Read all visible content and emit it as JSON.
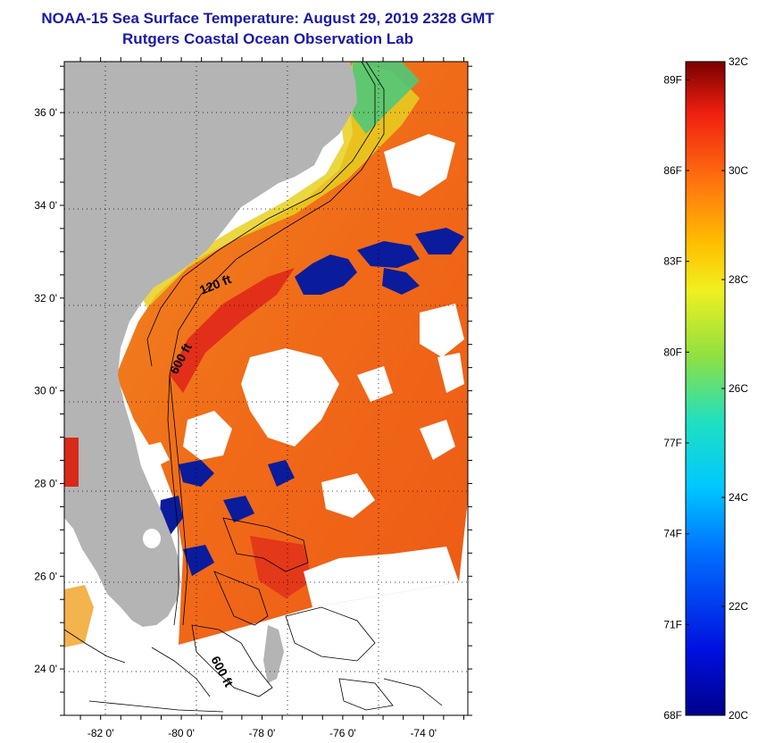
{
  "header": {
    "title": "NOAA-15 Sea Surface Temperature:  August 29, 2019 2328 GMT",
    "subtitle": "Rutgers Coastal Ocean Observation Lab"
  },
  "map": {
    "lat_range": [
      23,
      37.1
    ],
    "lon_range": [
      -82.9,
      -72.9
    ],
    "lat_labels": [
      {
        "lat": 36,
        "label": "36 0'"
      },
      {
        "lat": 34,
        "label": "34 0'"
      },
      {
        "lat": 32,
        "label": "32 0'"
      },
      {
        "lat": 30,
        "label": "30 0'"
      },
      {
        "lat": 28,
        "label": "28 0'"
      },
      {
        "lat": 26,
        "label": "26 0'"
      },
      {
        "lat": 24,
        "label": "24 0'"
      }
    ],
    "lon_labels": [
      {
        "lon": -82,
        "label": "-82 0'"
      },
      {
        "lon": -80,
        "label": "-80 0'"
      },
      {
        "lon": -78,
        "label": "-78 0'"
      },
      {
        "lon": -76,
        "label": "-76 0'"
      },
      {
        "lon": -74,
        "label": "-74 0'"
      }
    ],
    "contour_labels": {
      "c120": "120 ft",
      "c600a": "600 ft",
      "c600b": "600 ft"
    }
  },
  "colorbar": {
    "celsius": [
      {
        "value": 32,
        "label": "32C"
      },
      {
        "value": 30,
        "label": "30C"
      },
      {
        "value": 28,
        "label": "28C"
      },
      {
        "value": 26,
        "label": "26C"
      },
      {
        "value": 24,
        "label": "24C"
      },
      {
        "value": 22,
        "label": "22C"
      },
      {
        "value": 20,
        "label": "20C"
      }
    ],
    "fahrenheit": [
      {
        "value": 89,
        "label": "89F"
      },
      {
        "value": 86,
        "label": "86F"
      },
      {
        "value": 83,
        "label": "83F"
      },
      {
        "value": 80,
        "label": "80F"
      },
      {
        "value": 77,
        "label": "77F"
      },
      {
        "value": 74,
        "label": "74F"
      },
      {
        "value": 71,
        "label": "71F"
      },
      {
        "value": 68,
        "label": "68F"
      }
    ]
  },
  "colors": {
    "land": "#b4b4b4",
    "title": "#1a1aa6",
    "warm": "#f26a1a",
    "hot": "#e0281a",
    "cold": "#0a1c9c",
    "cloud": "#ffffff"
  }
}
